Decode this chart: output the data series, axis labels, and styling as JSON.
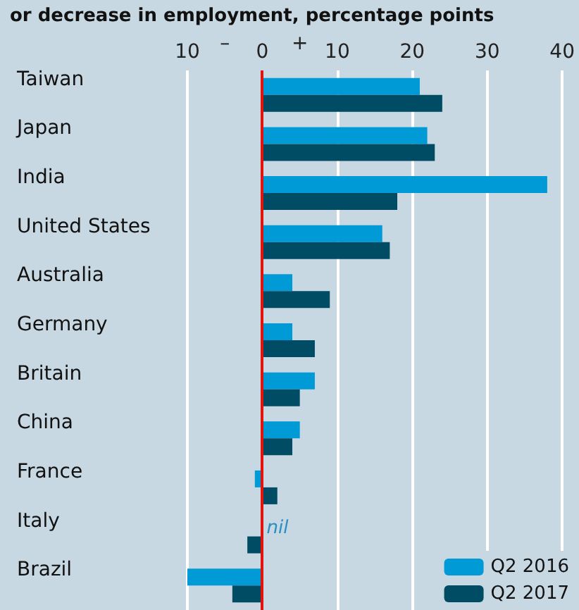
{
  "chart_data": {
    "type": "bar",
    "orientation": "horizontal",
    "title": "or decrease in employment, percentage points",
    "categories": [
      "Taiwan",
      "Japan",
      "India",
      "United States",
      "Australia",
      "Germany",
      "Britain",
      "China",
      "France",
      "Italy",
      "Brazil"
    ],
    "series": [
      {
        "name": "Q2 2016",
        "color": "#009bd6",
        "values": [
          21,
          22,
          38,
          16,
          4,
          4,
          7,
          5,
          -1,
          null,
          -10
        ]
      },
      {
        "name": "Q2 2017",
        "color": "#004c64",
        "values": [
          24,
          23,
          18,
          17,
          9,
          7,
          5,
          4,
          2,
          -2,
          -4
        ]
      }
    ],
    "xlim": [
      -10,
      40
    ],
    "xticks": [
      {
        "value": -10,
        "label": "10"
      },
      0,
      10,
      20,
      30,
      40
    ],
    "ref_lines": [
      {
        "axis": "x",
        "value": 0,
        "color": "#e3120b"
      }
    ],
    "annotations": [
      "–",
      "+",
      {
        "text": "nil",
        "x": 0,
        "y": "Italy"
      }
    ],
    "grid": "x",
    "legend": "bottom right"
  }
}
